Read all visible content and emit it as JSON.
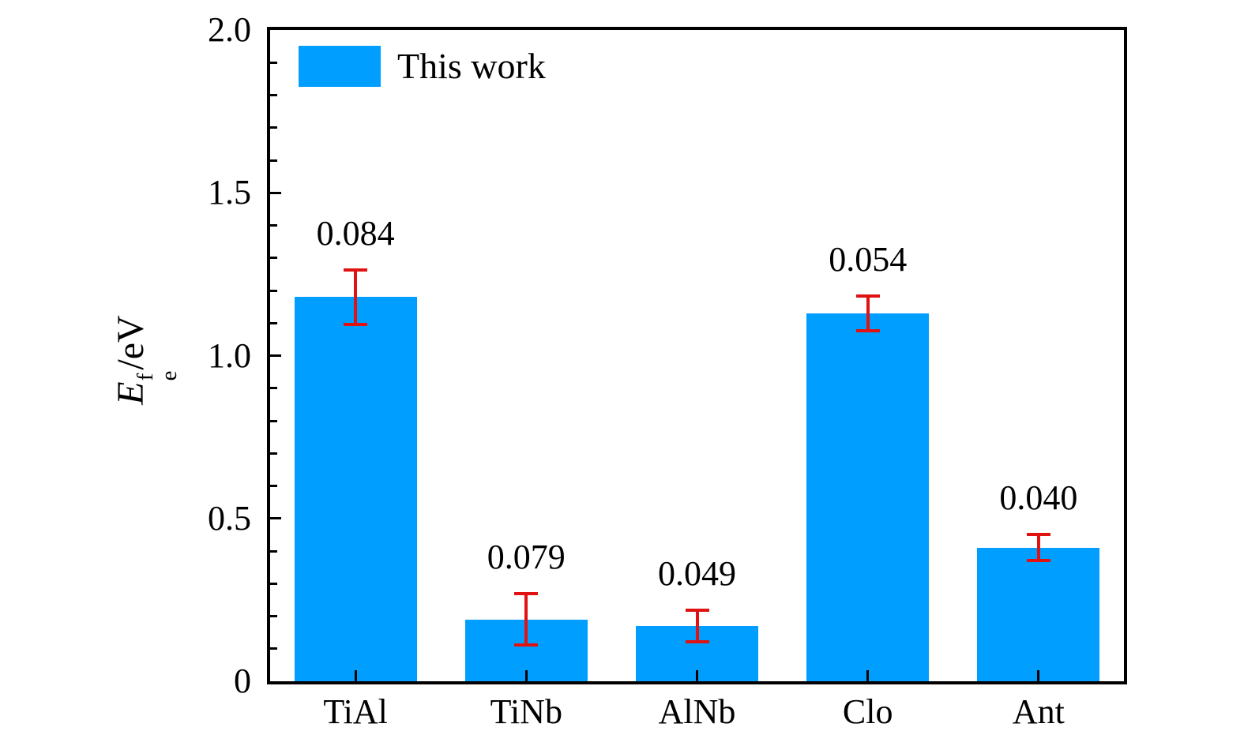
{
  "chart_data": {
    "type": "bar",
    "categories": [
      "TiAl",
      "TiNb",
      "AlNb",
      "Clo",
      "Ant"
    ],
    "values": [
      1.18,
      0.19,
      0.17,
      1.13,
      0.41
    ],
    "errors": [
      0.084,
      0.079,
      0.049,
      0.054,
      0.04
    ],
    "error_labels": [
      "0.084",
      "0.079",
      "0.049",
      "0.054",
      "0.040"
    ],
    "title": "",
    "xlabel": "",
    "ylabel": "E_e^f/eV",
    "ylabel_parts": {
      "base": "E",
      "sup": "f",
      "sub": "e",
      "rest": "/eV"
    },
    "ylim": [
      0,
      2.0
    ],
    "ytick_values": [
      0,
      0.5,
      1.0,
      1.5,
      2.0
    ],
    "ytick_labels": [
      "0",
      "0.5",
      "1.0",
      "1.5",
      "2.0"
    ],
    "minor_tick_step": 0.1,
    "grid": false,
    "legend": {
      "label": "This work",
      "position": "upper-left"
    },
    "colors": {
      "bar": "#009FFF",
      "error": "#E01212",
      "axis": "#000000",
      "background": "#FFFFFF"
    }
  }
}
